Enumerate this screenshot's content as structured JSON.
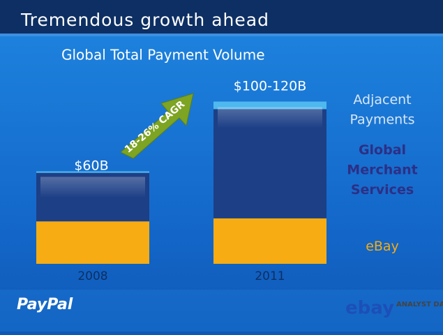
{
  "chart_data": {
    "type": "stacked-bar",
    "slide_title": "Tremendous growth ahead",
    "title": "Global Total Payment Volume",
    "categories": [
      "2008",
      "2011"
    ],
    "ylim": [
      0,
      110
    ],
    "series": [
      {
        "name": "eBay",
        "color": "#f6ac12",
        "values": [
          28,
          30
        ]
      },
      {
        "name": "Global Merchant Services",
        "color": "#1d3f86",
        "values": [
          32,
          72
        ]
      },
      {
        "name": "Adjacent Payments",
        "color": "#4fb8ee",
        "values": [
          1,
          5
        ]
      }
    ],
    "annotations": [
      "$60B",
      "$100-120B",
      "18-26% CAGR"
    ],
    "logos": [
      "PayPal",
      "ebay",
      "ANALYST DAY"
    ]
  }
}
